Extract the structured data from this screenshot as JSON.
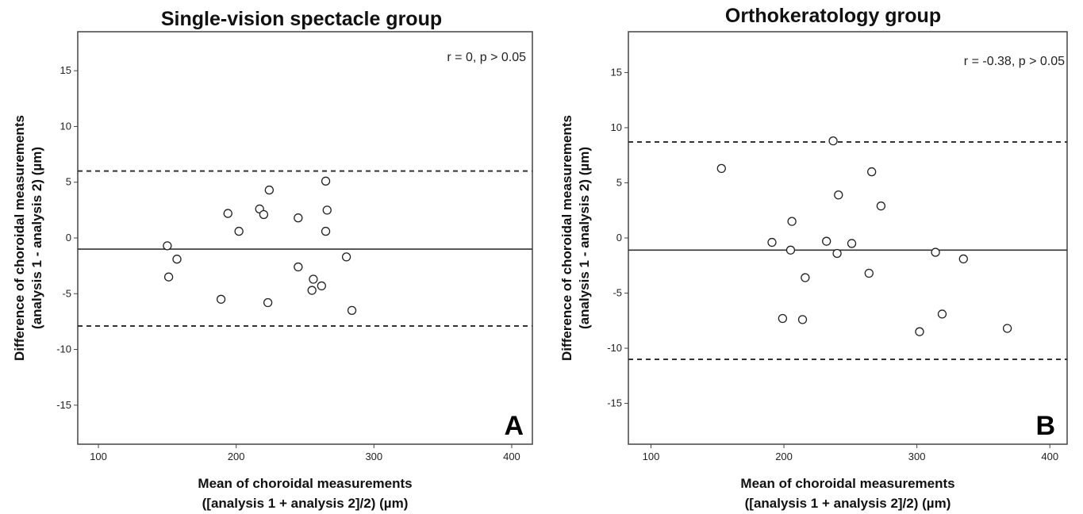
{
  "chart_data": [
    {
      "type": "scatter",
      "panel_label": "A",
      "title": "Single-vision spectacle group",
      "xlabel": [
        "Mean of choroidal measurements",
        "([analysis 1 + analysis 2]/2) (µm)"
      ],
      "ylabel": [
        "Difference of choroidal measurements",
        "(analysis 1 - analysis 2) (µm)"
      ],
      "annotation": "r = 0, p > 0.05",
      "xlim": [
        85,
        415
      ],
      "ylim": [
        -18.5,
        18.5
      ],
      "x_ticks": [
        100,
        200,
        300,
        400
      ],
      "y_ticks": [
        -15,
        -10,
        -5,
        0,
        5,
        10,
        15
      ],
      "mean_line": -1.0,
      "upper_limit": 6.0,
      "lower_limit": -7.9,
      "points": [
        {
          "x": 150,
          "y": -0.7
        },
        {
          "x": 151,
          "y": -3.5
        },
        {
          "x": 157,
          "y": -1.9
        },
        {
          "x": 189,
          "y": -5.5
        },
        {
          "x": 194,
          "y": 2.2
        },
        {
          "x": 202,
          "y": 0.6
        },
        {
          "x": 217,
          "y": 2.6
        },
        {
          "x": 220,
          "y": 2.1
        },
        {
          "x": 223,
          "y": -5.8
        },
        {
          "x": 224,
          "y": 4.3
        },
        {
          "x": 245,
          "y": 1.8
        },
        {
          "x": 245,
          "y": -2.6
        },
        {
          "x": 255,
          "y": -4.7
        },
        {
          "x": 256,
          "y": -3.7
        },
        {
          "x": 262,
          "y": -4.3
        },
        {
          "x": 265,
          "y": 5.1
        },
        {
          "x": 265,
          "y": 0.6
        },
        {
          "x": 266,
          "y": 2.5
        },
        {
          "x": 280,
          "y": -1.7
        },
        {
          "x": 284,
          "y": -6.5
        }
      ]
    },
    {
      "type": "scatter",
      "panel_label": "B",
      "title": "Orthokeratology group",
      "xlabel": [
        "Mean of choroidal measurements",
        "([analysis 1 + analysis 2]/2) (µm)"
      ],
      "ylabel": [
        "Difference of choroidal measurements",
        "(analysis 1 - analysis 2) (µm)"
      ],
      "annotation": "r = -0.38, p > 0.05",
      "xlim": [
        83,
        413
      ],
      "ylim": [
        -18.7,
        18.7
      ],
      "x_ticks": [
        100,
        200,
        300,
        400
      ],
      "y_ticks": [
        -15,
        -10,
        -5,
        0,
        5,
        10,
        15
      ],
      "mean_line": -1.1,
      "upper_limit": 8.7,
      "lower_limit": -11.0,
      "points": [
        {
          "x": 153,
          "y": 6.3
        },
        {
          "x": 191,
          "y": -0.4
        },
        {
          "x": 199,
          "y": -7.3
        },
        {
          "x": 205,
          "y": -1.1
        },
        {
          "x": 206,
          "y": 1.5
        },
        {
          "x": 214,
          "y": -7.4
        },
        {
          "x": 216,
          "y": -3.6
        },
        {
          "x": 232,
          "y": -0.3
        },
        {
          "x": 237,
          "y": 8.8
        },
        {
          "x": 240,
          "y": -1.4
        },
        {
          "x": 241,
          "y": 3.9
        },
        {
          "x": 251,
          "y": -0.5
        },
        {
          "x": 264,
          "y": -3.2
        },
        {
          "x": 266,
          "y": 6.0
        },
        {
          "x": 273,
          "y": 2.9
        },
        {
          "x": 302,
          "y": -8.5
        },
        {
          "x": 314,
          "y": -1.3
        },
        {
          "x": 319,
          "y": -6.9
        },
        {
          "x": 335,
          "y": -1.9
        },
        {
          "x": 368,
          "y": -8.2
        }
      ]
    }
  ]
}
